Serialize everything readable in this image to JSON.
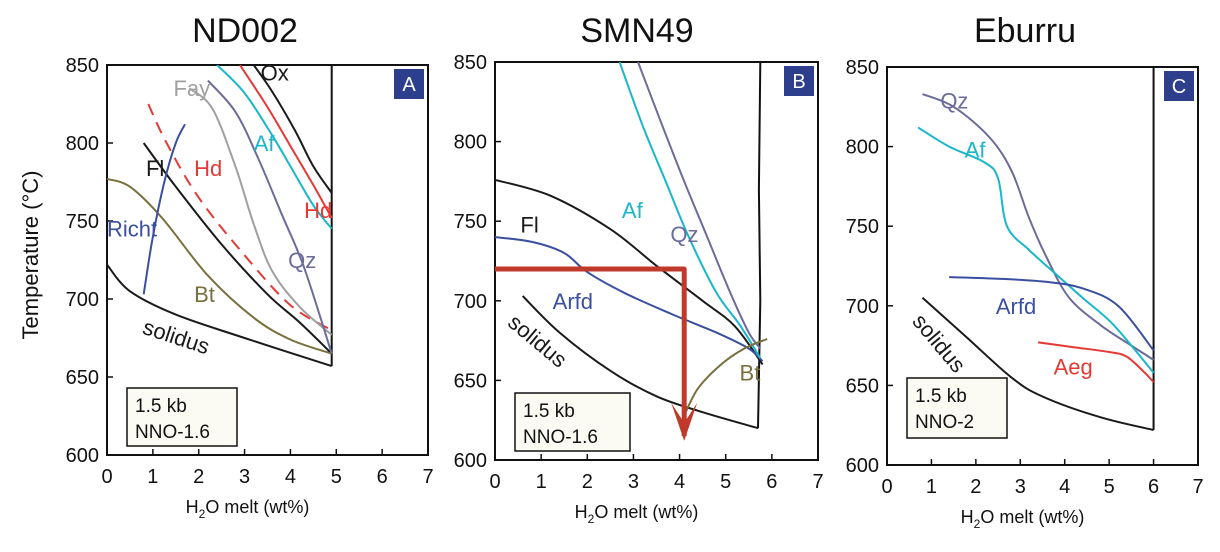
{
  "figure": {
    "ylabel": "Temperature (°C)",
    "xlabel_prefix": "H",
    "xlabel_sub": "2",
    "xlabel_suffix": "O melt (wt%)"
  },
  "chart_data": [
    {
      "type": "line",
      "title": "ND002",
      "panel_label": "A",
      "xlim": [
        0,
        7
      ],
      "ylim": [
        600,
        850
      ],
      "x_ticks": [
        0,
        1,
        2,
        3,
        4,
        5,
        6,
        7
      ],
      "y_ticks": [
        600,
        650,
        700,
        750,
        800,
        850
      ],
      "condition_box": [
        "1.5 kb",
        "NNO-1.6"
      ],
      "vertical_boundary_x": 4.9,
      "series": [
        {
          "name": "solidus",
          "color": "#1a1a1a",
          "dash": false,
          "points": [
            [
              0,
              722
            ],
            [
              0.5,
              705
            ],
            [
              1.5,
              690
            ],
            [
              3,
              675
            ],
            [
              4.9,
              657
            ]
          ]
        },
        {
          "name": "Fl",
          "color": "#1a1a1a",
          "dash": false,
          "points": [
            [
              0.8,
              800
            ],
            [
              1.5,
              772
            ],
            [
              2.5,
              735
            ],
            [
              3.5,
              703
            ],
            [
              4.2,
              685
            ],
            [
              4.9,
              665
            ]
          ]
        },
        {
          "name": "Bt",
          "color": "#77703e",
          "dash": false,
          "points": [
            [
              0,
              777
            ],
            [
              0.5,
              772
            ],
            [
              1.2,
              752
            ],
            [
              2.2,
              715
            ],
            [
              3.2,
              688
            ],
            [
              4,
              674
            ],
            [
              4.9,
              665
            ]
          ]
        },
        {
          "name": "Richt",
          "color": "#3b4fa0",
          "dash": false,
          "points": [
            [
              0.8,
              703
            ],
            [
              1.0,
              740
            ],
            [
              1.25,
              775
            ],
            [
              1.5,
              800
            ],
            [
              1.7,
              812
            ]
          ]
        },
        {
          "name": "Hd",
          "color": "#e53935",
          "dash": true,
          "points": [
            [
              0.9,
              825
            ],
            [
              1.3,
              800
            ],
            [
              2.0,
              765
            ],
            [
              3.0,
              728
            ],
            [
              4.0,
              696
            ],
            [
              4.9,
              680
            ]
          ]
        },
        {
          "name": "Fay",
          "color": "#a0a0a0",
          "dash": false,
          "points": [
            [
              1.8,
              835
            ],
            [
              2.3,
              822
            ],
            [
              2.8,
              785
            ],
            [
              3.2,
              748
            ],
            [
              3.6,
              718
            ],
            [
              4.2,
              695
            ],
            [
              4.9,
              677
            ]
          ]
        },
        {
          "name": "Qz",
          "color": "#6c6c9a",
          "dash": false,
          "points": [
            [
              2.2,
              840
            ],
            [
              2.8,
              820
            ],
            [
              3.3,
              790
            ],
            [
              3.8,
              755
            ],
            [
              4.3,
              720
            ],
            [
              4.9,
              665
            ]
          ]
        },
        {
          "name": "Af",
          "color": "#19b7c9",
          "dash": false,
          "points": [
            [
              2.4,
              850
            ],
            [
              3.0,
              832
            ],
            [
              3.6,
              805
            ],
            [
              4.1,
              780
            ],
            [
              4.5,
              760
            ],
            [
              4.9,
              745
            ]
          ]
        },
        {
          "name": "Hd",
          "color": "#e53935",
          "dash": false,
          "points": [
            [
              2.9,
              850
            ],
            [
              3.5,
              823
            ],
            [
              4.0,
              798
            ],
            [
              4.5,
              773
            ],
            [
              4.9,
              752
            ]
          ]
        },
        {
          "name": "Ox",
          "color": "#1a1a1a",
          "dash": false,
          "points": [
            [
              3.2,
              850
            ],
            [
              3.6,
              833
            ],
            [
              4.1,
              808
            ],
            [
              4.5,
              785
            ],
            [
              4.9,
              768
            ]
          ]
        }
      ],
      "labels": [
        {
          "text": "Ox",
          "x": 3.35,
          "y": 840,
          "color": "#1a1a1a"
        },
        {
          "text": "Fay",
          "x": 1.45,
          "y": 830,
          "color": "#a0a0a0"
        },
        {
          "text": "Af",
          "x": 3.2,
          "y": 795,
          "color": "#19b7c9"
        },
        {
          "text": "Fl",
          "x": 0.85,
          "y": 779,
          "color": "#1a1a1a"
        },
        {
          "text": "Hd",
          "x": 1.9,
          "y": 779,
          "color": "#e53935"
        },
        {
          "text": "Hd",
          "x": 4.3,
          "y": 752,
          "color": "#e53935"
        },
        {
          "text": "Richt",
          "x": 0.0,
          "y": 740,
          "color": "#3b4fa0"
        },
        {
          "text": "Qz",
          "x": 3.95,
          "y": 720,
          "color": "#6c6c9a"
        },
        {
          "text": "Bt",
          "x": 1.9,
          "y": 698,
          "color": "#77703e"
        },
        {
          "text": "solidus",
          "x": 0.75,
          "y": 678,
          "color": "#1a1a1a",
          "rotate": 18
        }
      ]
    },
    {
      "type": "line",
      "title": "SMN49",
      "panel_label": "B",
      "xlim": [
        0,
        7
      ],
      "ylim": [
        600,
        850
      ],
      "x_ticks": [
        0,
        1,
        2,
        3,
        4,
        5,
        6,
        7
      ],
      "y_ticks": [
        600,
        650,
        700,
        750,
        800,
        850
      ],
      "condition_box": [
        "1.5 kb",
        "NNO-1.6"
      ],
      "vertical_boundary": [
        [
          5.75,
          850
        ],
        [
          5.72,
          770
        ],
        [
          5.75,
          700
        ],
        [
          5.7,
          620
        ]
      ],
      "series": [
        {
          "name": "solidus",
          "color": "#1a1a1a",
          "dash": false,
          "points": [
            [
              0.6,
              703
            ],
            [
              1.4,
              680
            ],
            [
              2.5,
              656
            ],
            [
              3.5,
              640
            ],
            [
              4.5,
              630
            ],
            [
              5.7,
              620
            ]
          ]
        },
        {
          "name": "Fl",
          "color": "#1a1a1a",
          "dash": false,
          "points": [
            [
              0,
              776
            ],
            [
              1.2,
              766
            ],
            [
              2.5,
              745
            ],
            [
              3.5,
              722
            ],
            [
              4.5,
              700
            ],
            [
              5.2,
              684
            ],
            [
              5.8,
              660
            ]
          ]
        },
        {
          "name": "Arfd",
          "color": "#3b4fa0",
          "dash": false,
          "points": [
            [
              0,
              740
            ],
            [
              0.8,
              737
            ],
            [
              1.5,
              730
            ],
            [
              2.0,
              718
            ],
            [
              2.8,
              705
            ],
            [
              3.8,
              692
            ],
            [
              4.8,
              680
            ],
            [
              5.5,
              670
            ],
            [
              5.8,
              662
            ]
          ]
        },
        {
          "name": "Af",
          "color": "#19b7c9",
          "dash": false,
          "points": [
            [
              2.7,
              850
            ],
            [
              3.2,
              810
            ],
            [
              3.7,
              775
            ],
            [
              4.2,
              740
            ],
            [
              4.8,
              705
            ],
            [
              5.3,
              685
            ],
            [
              5.75,
              664
            ]
          ]
        },
        {
          "name": "Qz",
          "color": "#6c6c9a",
          "dash": false,
          "points": [
            [
              3.1,
              850
            ],
            [
              3.6,
              812
            ],
            [
              4.1,
              775
            ],
            [
              4.6,
              740
            ],
            [
              5.1,
              705
            ],
            [
              5.5,
              680
            ],
            [
              5.75,
              670
            ]
          ]
        },
        {
          "name": "Bt",
          "color": "#77703e",
          "dash": false,
          "points": [
            [
              4.1,
              628
            ],
            [
              4.4,
              645
            ],
            [
              4.9,
              660
            ],
            [
              5.4,
              670
            ],
            [
              5.9,
              676
            ]
          ]
        },
        {
          "name": "path",
          "color": "#c0392b",
          "dash": false,
          "width": 5,
          "points": [
            [
              0,
              720
            ],
            [
              4.1,
              720
            ],
            [
              4.1,
              615
            ]
          ]
        }
      ],
      "arrowhead": {
        "x": 4.1,
        "y": 612,
        "color": "#c0392b"
      },
      "labels": [
        {
          "text": "Fl",
          "x": 0.55,
          "y": 743,
          "color": "#1a1a1a"
        },
        {
          "text": "Af",
          "x": 2.75,
          "y": 752,
          "color": "#19b7c9"
        },
        {
          "text": "Qz",
          "x": 3.8,
          "y": 737,
          "color": "#6c6c9a"
        },
        {
          "text": "Arfd",
          "x": 1.25,
          "y": 695,
          "color": "#3b4fa0"
        },
        {
          "text": "solidus",
          "x": 0.25,
          "y": 685,
          "color": "#1a1a1a",
          "rotate": 40
        },
        {
          "text": "Bt",
          "x": 5.3,
          "y": 650,
          "color": "#77703e"
        }
      ]
    },
    {
      "type": "line",
      "title": "Eburru",
      "panel_label": "C",
      "xlim": [
        0,
        7
      ],
      "ylim": [
        600,
        850
      ],
      "x_ticks": [
        0,
        1,
        2,
        3,
        4,
        5,
        6,
        7
      ],
      "y_ticks": [
        600,
        650,
        700,
        750,
        800,
        850
      ],
      "condition_box": [
        "1.5 kb",
        "NNO-2"
      ],
      "vertical_boundary_x": 6.0,
      "series": [
        {
          "name": "solidus",
          "color": "#1a1a1a",
          "dash": false,
          "points": [
            [
              0.8,
              705
            ],
            [
              1.8,
              680
            ],
            [
              2.8,
              655
            ],
            [
              3.5,
              643
            ],
            [
              4.8,
              630
            ],
            [
              6.0,
              622
            ]
          ]
        },
        {
          "name": "Qz",
          "color": "#6c6c9a",
          "dash": false,
          "points": [
            [
              0.8,
              833
            ],
            [
              1.5,
              825
            ],
            [
              2.3,
              806
            ],
            [
              2.8,
              785
            ],
            [
              3.2,
              755
            ],
            [
              3.6,
              730
            ],
            [
              4.1,
              705
            ],
            [
              4.8,
              688
            ],
            [
              5.5,
              675
            ],
            [
              6.0,
              666
            ]
          ]
        },
        {
          "name": "Af",
          "color": "#19b7c9",
          "dash": false,
          "points": [
            [
              0.7,
              812
            ],
            [
              1.4,
              800
            ],
            [
              2.2,
              790
            ],
            [
              2.5,
              780
            ],
            [
              2.7,
              750
            ],
            [
              3.2,
              735
            ],
            [
              3.8,
              720
            ],
            [
              4.4,
              705
            ],
            [
              5.1,
              688
            ],
            [
              6.0,
              658
            ]
          ]
        },
        {
          "name": "Arfd",
          "color": "#3b4fa0",
          "dash": false,
          "points": [
            [
              1.4,
              718
            ],
            [
              2.5,
              717
            ],
            [
              3.6,
              715
            ],
            [
              4.4,
              711
            ],
            [
              5.2,
              700
            ],
            [
              6.0,
              672
            ]
          ]
        },
        {
          "name": "Aeg",
          "color": "#e53935",
          "dash": false,
          "points": [
            [
              3.4,
              677
            ],
            [
              4.2,
              674
            ],
            [
              5.0,
              671
            ],
            [
              5.4,
              668
            ],
            [
              5.8,
              658
            ],
            [
              6.0,
              652
            ]
          ]
        }
      ],
      "labels": [
        {
          "text": "Qz",
          "x": 1.2,
          "y": 824,
          "color": "#6c6c9a"
        },
        {
          "text": "Af",
          "x": 1.75,
          "y": 793,
          "color": "#19b7c9"
        },
        {
          "text": "Arfd",
          "x": 2.45,
          "y": 695,
          "color": "#3b4fa0"
        },
        {
          "text": "solidus",
          "x": 0.55,
          "y": 690,
          "color": "#1a1a1a",
          "rotate": 50
        },
        {
          "text": "Aeg",
          "x": 3.75,
          "y": 657,
          "color": "#e53935"
        }
      ]
    }
  ]
}
